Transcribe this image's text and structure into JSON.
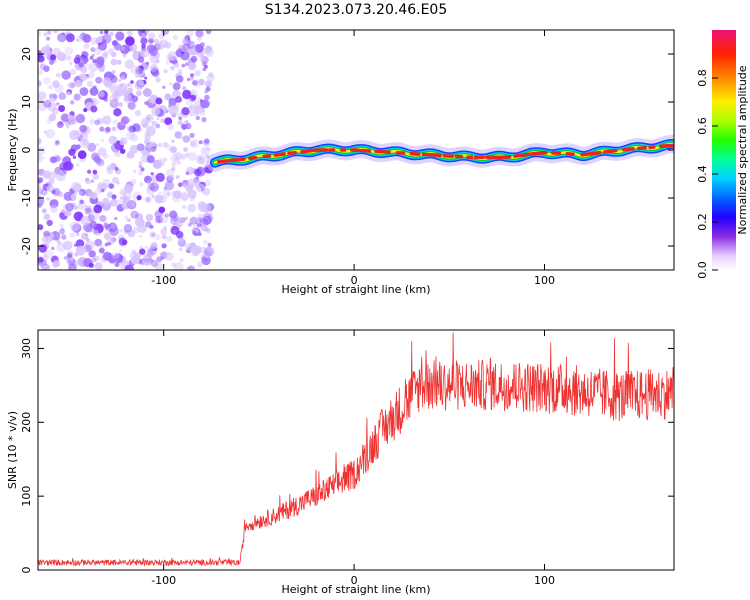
{
  "title": "S134.2023.073.20.46.E05",
  "colors": {
    "snr_line": "#ee3333",
    "noise": "#7a2bff",
    "track_core": "#ee2222",
    "track_mid": "#00cc44",
    "track_outer": "#1144ff"
  },
  "chart_data": [
    {
      "type": "heatmap",
      "xlabel": "Height of straight line (km)",
      "ylabel": "Frequency (Hz)",
      "xlim": [
        -166,
        168
      ],
      "ylim": [
        -25,
        25
      ],
      "x_ticks": [
        -100,
        0,
        100
      ],
      "y_ticks": [
        -20,
        -10,
        0,
        10,
        20
      ],
      "colorbar": {
        "label": "Normalized spectral amplitude",
        "range": [
          0,
          1
        ],
        "ticks": [
          "0.0",
          "0.2",
          "0.4",
          "0.6",
          "0.8"
        ]
      },
      "noise_region_x": [
        -166,
        -75
      ],
      "track_centerline": {
        "x": [
          -73,
          -60,
          -40,
          -20,
          0,
          20,
          40,
          60,
          80,
          100,
          120,
          140,
          168
        ],
        "y": [
          -2.5,
          -2,
          -1,
          0,
          0,
          -0.5,
          -1,
          -1.5,
          -1.5,
          -0.5,
          -1,
          0,
          1
        ]
      },
      "grid": false
    },
    {
      "type": "line",
      "xlabel": "Height of straight line (km)",
      "ylabel": "SNR (10 * v/v)",
      "xlim": [
        -166,
        168
      ],
      "ylim": [
        0,
        325
      ],
      "x_ticks": [
        -100,
        0,
        100
      ],
      "y_ticks": [
        0,
        100,
        200,
        300
      ],
      "trend": {
        "x": [
          -166,
          -60,
          -57,
          -40,
          -20,
          0,
          15,
          25,
          35,
          50,
          80,
          110,
          140,
          168
        ],
        "y": [
          10,
          10,
          60,
          75,
          100,
          130,
          190,
          220,
          250,
          250,
          250,
          245,
          235,
          240
        ]
      },
      "grid": false
    }
  ]
}
